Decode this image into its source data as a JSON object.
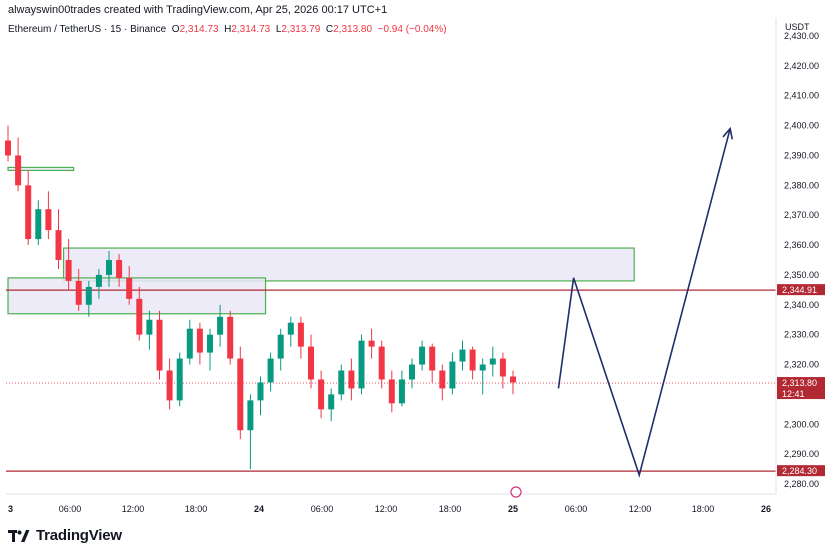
{
  "credit": "alwayswin00trades created with TradingView.com, Apr 25, 2026 00:17 UTC+1",
  "symbol": {
    "name": "Ethereum / TetherUS · 15 · Binance",
    "o_label": "O",
    "o_value": "2,314.73",
    "h_label": "H",
    "h_value": "2,314.73",
    "l_label": "L",
    "l_value": "2,313.79",
    "c_label": "C",
    "c_value": "2,313.80",
    "change": "−0.94 (−0.04%)"
  },
  "footer": {
    "brand": "TradingView"
  },
  "colors": {
    "up": "#089981",
    "down": "#f23645",
    "zone_fill": "#ebe7f7",
    "zone_border": "#4caf50",
    "level": "#b22833",
    "path": "#1f2f6b",
    "axis_text": "#131722"
  },
  "chart_data": {
    "type": "candlestick",
    "unit": "USDT",
    "ylim": [
      2280,
      2430
    ],
    "y_ticks": [
      "2,280.00",
      "2,290.00",
      "2,300.00",
      "2,310.00",
      "2,320.00",
      "2,330.00",
      "2,340.00",
      "2,350.00",
      "2,360.00",
      "2,370.00",
      "2,380.00",
      "2,390.00",
      "2,400.00",
      "2,410.00",
      "2,420.00",
      "2,430.00"
    ],
    "x_ticks": [
      "3",
      "06:00",
      "12:00",
      "18:00",
      "24",
      "06:00",
      "12:00",
      "18:00",
      "25",
      "06:00",
      "12:00",
      "18:00",
      "26"
    ],
    "price_labels": [
      {
        "text": "2,344.91",
        "price": 2344.91
      },
      {
        "text": "2,313.80",
        "price": 2313.8,
        "sub": "12:41"
      },
      {
        "text": "2,284.30",
        "price": 2284.3
      }
    ],
    "levels": [
      2344.91,
      2284.3
    ],
    "zones": [
      {
        "t0": 0.0,
        "t1": 6.5,
        "top": 2386,
        "bottom": 2385
      },
      {
        "t0": 5.5,
        "t1": 62.0,
        "top": 2359,
        "bottom": 2348
      },
      {
        "t0": 0.0,
        "t1": 25.5,
        "top": 2349,
        "bottom": 2337
      }
    ],
    "projection": [
      [
        54.5,
        2312
      ],
      [
        56.0,
        2349
      ],
      [
        62.5,
        2283
      ],
      [
        71.5,
        2399
      ]
    ],
    "candles": [
      [
        2395.0,
        2400.0,
        2388.0,
        2390.0
      ],
      [
        2390.0,
        2396.0,
        2378.0,
        2380.0
      ],
      [
        2380.0,
        2385.0,
        2360.0,
        2362.0
      ],
      [
        2362.0,
        2375.0,
        2360.0,
        2372.0
      ],
      [
        2372.0,
        2378.0,
        2362.0,
        2365.0
      ],
      [
        2365.0,
        2372.0,
        2352.0,
        2355.0
      ],
      [
        2355.0,
        2362.0,
        2345.0,
        2348.0
      ],
      [
        2348.0,
        2352.0,
        2338.0,
        2340.0
      ],
      [
        2340.0,
        2348.0,
        2336.0,
        2346.0
      ],
      [
        2346.0,
        2352.0,
        2342.0,
        2350.0
      ],
      [
        2350.0,
        2358.0,
        2346.0,
        2355.0
      ],
      [
        2355.0,
        2357.0,
        2346.0,
        2349.0
      ],
      [
        2349.0,
        2353.0,
        2340.0,
        2342.0
      ],
      [
        2342.0,
        2346.0,
        2328.0,
        2330.0
      ],
      [
        2330.0,
        2338.0,
        2325.0,
        2335.0
      ],
      [
        2335.0,
        2338.0,
        2315.0,
        2318.0
      ],
      [
        2318.0,
        2322.0,
        2305.0,
        2308.0
      ],
      [
        2308.0,
        2324.0,
        2306.0,
        2322.0
      ],
      [
        2322.0,
        2335.0,
        2320.0,
        2332.0
      ],
      [
        2332.0,
        2334.0,
        2320.0,
        2324.0
      ],
      [
        2324.0,
        2332.0,
        2318.0,
        2330.0
      ],
      [
        2330.0,
        2340.0,
        2326.0,
        2336.0
      ],
      [
        2336.0,
        2338.0,
        2320.0,
        2322.0
      ],
      [
        2322.0,
        2326.0,
        2295.0,
        2298.0
      ],
      [
        2298.0,
        2310.0,
        2285.0,
        2308.0
      ],
      [
        2308.0,
        2316.0,
        2303.0,
        2314.0
      ],
      [
        2314.0,
        2324.0,
        2311.0,
        2322.0
      ],
      [
        2322.0,
        2332.0,
        2318.0,
        2330.0
      ],
      [
        2330.0,
        2336.0,
        2326.0,
        2334.0
      ],
      [
        2334.0,
        2336.0,
        2322.0,
        2326.0
      ],
      [
        2326.0,
        2330.0,
        2312.0,
        2315.0
      ],
      [
        2315.0,
        2318.0,
        2302.0,
        2305.0
      ],
      [
        2305.0,
        2312.0,
        2301.0,
        2310.0
      ],
      [
        2310.0,
        2320.0,
        2308.0,
        2318.0
      ],
      [
        2318.0,
        2322.0,
        2308.0,
        2312.0
      ],
      [
        2312.0,
        2330.0,
        2310.0,
        2328.0
      ],
      [
        2328.0,
        2332.0,
        2322.0,
        2326.0
      ],
      [
        2326.0,
        2328.0,
        2312.0,
        2315.0
      ],
      [
        2315.0,
        2318.0,
        2304.0,
        2307.0
      ],
      [
        2307.0,
        2318.0,
        2306.0,
        2315.0
      ],
      [
        2315.0,
        2322.0,
        2312.0,
        2320.0
      ],
      [
        2320.0,
        2328.0,
        2318.0,
        2326.0
      ],
      [
        2326.0,
        2327.0,
        2314.0,
        2318.0
      ],
      [
        2318.0,
        2320.0,
        2308.0,
        2312.0
      ],
      [
        2312.0,
        2324.0,
        2310.0,
        2321.0
      ],
      [
        2321.0,
        2328.0,
        2318.0,
        2325.0
      ],
      [
        2325.0,
        2326.0,
        2315.0,
        2318.0
      ],
      [
        2318.0,
        2322.0,
        2310.0,
        2320.0
      ],
      [
        2320.0,
        2326.0,
        2316.0,
        2322.0
      ],
      [
        2322.0,
        2324.0,
        2312.0,
        2316.0
      ],
      [
        2316.0,
        2318.0,
        2310.0,
        2314.0
      ]
    ]
  }
}
